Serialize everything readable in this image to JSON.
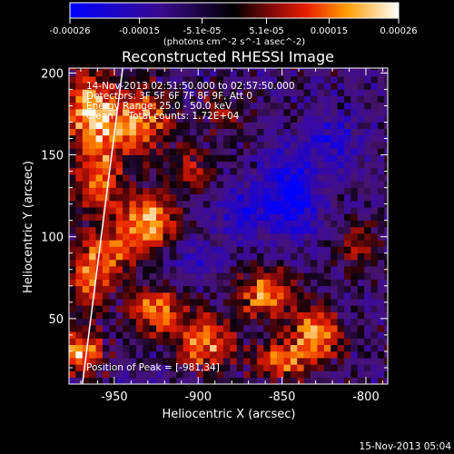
{
  "chart_data": {
    "type": "heatmap",
    "title": "Reconstructed RHESSI Image",
    "xlabel": "Heliocentric X (arcsec)",
    "ylabel": "Heliocentric Y (arcsec)",
    "xlim": [
      -977,
      -787
    ],
    "ylim": [
      10,
      203
    ],
    "x_ticks": [
      -950,
      -900,
      -850,
      -800
    ],
    "y_ticks": [
      50,
      100,
      150,
      200
    ],
    "annotations": [
      "14-Nov-2013 02:51:50.000 to 02:57:50.000",
      "Detectors: 3F 5F 6F 7F 8F 9F, Att 0",
      "Energy Range: 25.0 - 50.0 keV",
      "Clean     Total counts: 1.72E+04",
      "Position of Peak = [-981,34]"
    ],
    "colorbar": {
      "tick_labels": [
        "-0.00026",
        "-0.00015",
        "-5.1e-05",
        "5.1e-05",
        "0.00015",
        "0.00026"
      ],
      "tick_values": [
        -0.00026,
        -0.00015,
        -5.1e-05,
        5.1e-05,
        0.00015,
        0.00026
      ],
      "range": [
        -0.00026,
        0.00026
      ],
      "unit_label": "(photons cm^-2 s^-1 asec^-2)"
    },
    "footer_timestamp": "15-Nov-2013 05:04",
    "colors": {
      "background": "#000000",
      "foreground": "#ffffff",
      "limb_line": "#ffffff"
    },
    "blobs": [
      {
        "x": -965,
        "y": 180,
        "amp": 1.0,
        "sx": 10,
        "sy": 14
      },
      {
        "x": -935,
        "y": 170,
        "amp": 0.9,
        "sx": 13,
        "sy": 14
      },
      {
        "x": -930,
        "y": 110,
        "amp": 1.0,
        "sx": 12,
        "sy": 12
      },
      {
        "x": -960,
        "y": 140,
        "amp": 0.75,
        "sx": 11,
        "sy": 20
      },
      {
        "x": -950,
        "y": 90,
        "amp": 0.6,
        "sx": 10,
        "sy": 10
      },
      {
        "x": -905,
        "y": 140,
        "amp": 0.5,
        "sx": 9,
        "sy": 10
      },
      {
        "x": -970,
        "y": 30,
        "amp": 1.0,
        "sx": 9,
        "sy": 9
      },
      {
        "x": -965,
        "y": 75,
        "amp": 0.8,
        "sx": 8,
        "sy": 14
      },
      {
        "x": -925,
        "y": 55,
        "amp": 0.9,
        "sx": 11,
        "sy": 10
      },
      {
        "x": -895,
        "y": 35,
        "amp": 0.85,
        "sx": 12,
        "sy": 12
      },
      {
        "x": -860,
        "y": 65,
        "amp": 0.9,
        "sx": 11,
        "sy": 11
      },
      {
        "x": -830,
        "y": 40,
        "amp": 0.9,
        "sx": 10,
        "sy": 12
      },
      {
        "x": -805,
        "y": 95,
        "amp": 0.5,
        "sx": 9,
        "sy": 10
      },
      {
        "x": -850,
        "y": 25,
        "amp": 0.8,
        "sx": 10,
        "sy": 8
      },
      {
        "x": -885,
        "y": 175,
        "amp": 0.35,
        "sx": 10,
        "sy": 10
      },
      {
        "x": -845,
        "y": 125,
        "amp": -0.8,
        "sx": 12,
        "sy": 18
      },
      {
        "x": -875,
        "y": 115,
        "amp": -0.5,
        "sx": 10,
        "sy": 12
      },
      {
        "x": -820,
        "y": 160,
        "amp": -0.45,
        "sx": 12,
        "sy": 12
      },
      {
        "x": -900,
        "y": 85,
        "amp": -0.35,
        "sx": 10,
        "sy": 8
      }
    ],
    "limb_line": [
      {
        "x": -969,
        "y": 10
      },
      {
        "x": -945,
        "y": 203
      }
    ]
  }
}
